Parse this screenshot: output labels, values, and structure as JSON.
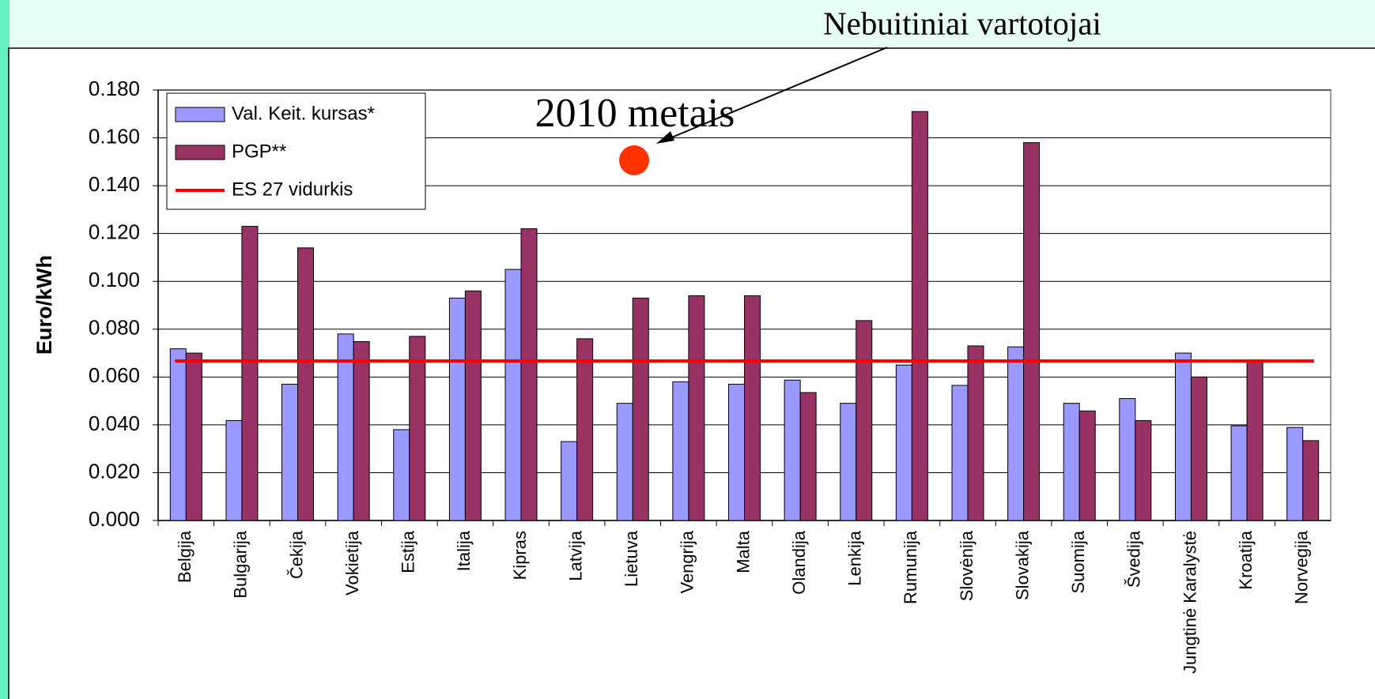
{
  "chart_data": {
    "type": "bar",
    "ylabel": "Euro/kWh",
    "annotations": [
      "Nebuitiniai vartotojai",
      "2010 metais"
    ],
    "categories": [
      "Belgija",
      "Bulgarija",
      "Čekija",
      "Vokietija",
      "Estija",
      "Italija",
      "Kipras",
      "Latvija",
      "Lietuva",
      "Vengrija",
      "Malta",
      "Olandija",
      "Lenkija",
      "Rumunija",
      "Slovėnija",
      "Slovakija",
      "Suomija",
      "Švedija",
      "Jungtinė Karalystė",
      "Kroatija",
      "Norvegija"
    ],
    "series": [
      {
        "name": "Val. Keit. kursas*",
        "color": "#9999ff",
        "values": [
          0.0718,
          0.0418,
          0.057,
          0.078,
          0.038,
          0.093,
          0.105,
          0.033,
          0.049,
          0.058,
          0.057,
          0.0587,
          0.049,
          0.065,
          0.0565,
          0.0726,
          0.049,
          0.051,
          0.07,
          0.0396,
          0.0389
        ]
      },
      {
        "name": "PGP**",
        "color": "#993366",
        "values": [
          0.07,
          0.123,
          0.114,
          0.0748,
          0.077,
          0.096,
          0.122,
          0.076,
          0.093,
          0.094,
          0.094,
          0.0535,
          0.0836,
          0.171,
          0.073,
          0.158,
          0.0458,
          0.0418,
          0.06,
          0.0667,
          0.0334
        ]
      }
    ],
    "reference_line": {
      "name": "ES 27 vidurkis",
      "color": "#ff0000",
      "value": 0.0667
    },
    "ylim": [
      0,
      0.18
    ],
    "yticks": [
      {
        "value": 0,
        "label": "0.000"
      },
      {
        "value": 0.02,
        "label": "0.020"
      },
      {
        "value": 0.04,
        "label": "0.040"
      },
      {
        "value": 0.06,
        "label": "0.060"
      },
      {
        "value": 0.08,
        "label": "0.080"
      },
      {
        "value": 0.1,
        "label": "0.100"
      },
      {
        "value": 0.12,
        "label": "0.120"
      },
      {
        "value": 0.14,
        "label": "0.140"
      },
      {
        "value": 0.16,
        "label": "0.160"
      },
      {
        "value": 0.18,
        "label": "0.180"
      }
    ],
    "grid": true
  }
}
